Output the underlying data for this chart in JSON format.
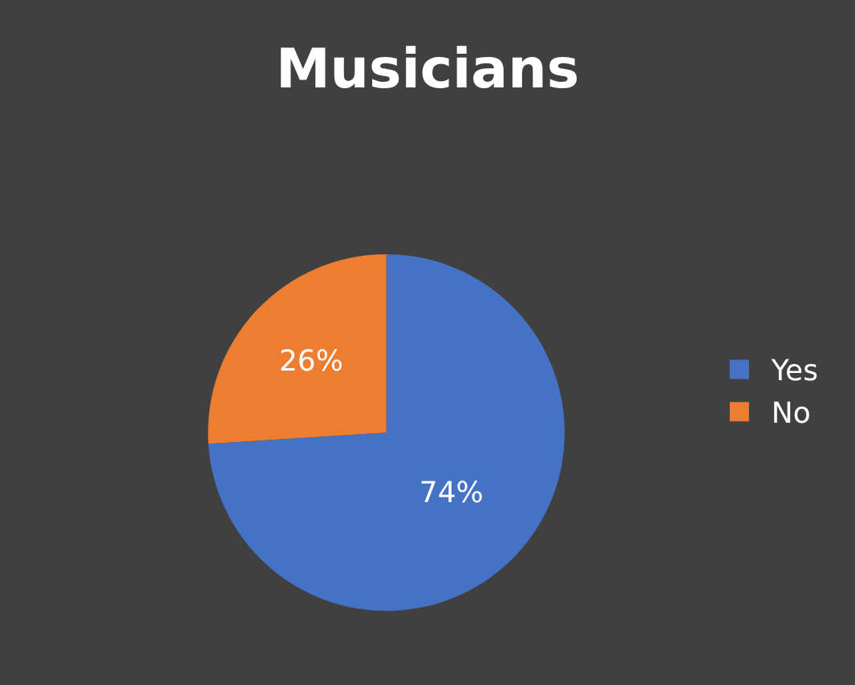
{
  "chart_data": {
    "type": "pie",
    "title": "Musicians",
    "categories": [
      "Yes",
      "No"
    ],
    "values": [
      74,
      26
    ],
    "colors": [
      "#4472c4",
      "#ed7d31"
    ],
    "value_labels": [
      "74%",
      "26%"
    ],
    "legend": "right"
  }
}
